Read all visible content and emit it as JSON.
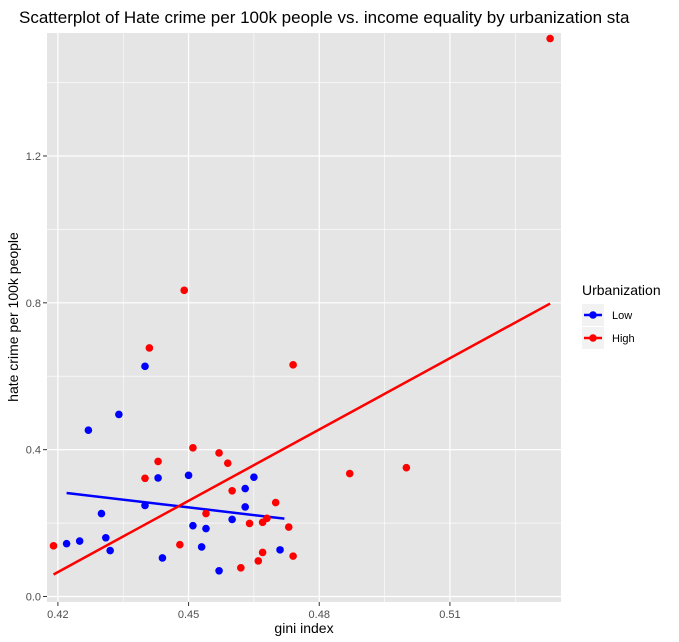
{
  "chart_data": {
    "type": "scatter",
    "title": "Scatterplot of Hate crime per 100k people vs. income equality by urbanization sta",
    "xlabel": "gini index",
    "ylabel": "hate crime per 100k people",
    "xlim": [
      0.4175,
      0.5355
    ],
    "ylim": [
      -0.015,
      1.535
    ],
    "x_ticks": [
      0.42,
      0.45,
      0.48,
      0.51
    ],
    "x_tick_labels": [
      "0.42",
      "0.45",
      "0.48",
      "0.51"
    ],
    "y_ticks": [
      0.0,
      0.4,
      0.8,
      1.2
    ],
    "y_tick_labels": [
      "0.0",
      "0.4",
      "0.8",
      "1.2"
    ],
    "grid": true,
    "legend": {
      "title": "Urbanization",
      "position": "right"
    },
    "colors": {
      "Low": "#0000ff",
      "High": "#ff0000",
      "panel": "#e5e5e5",
      "grid": "#ffffff"
    },
    "series": [
      {
        "name": "Low",
        "color": "#0000ff",
        "points": [
          [
            0.422,
            0.144
          ],
          [
            0.425,
            0.151
          ],
          [
            0.427,
            0.453
          ],
          [
            0.43,
            0.226
          ],
          [
            0.431,
            0.16
          ],
          [
            0.432,
            0.125
          ],
          [
            0.434,
            0.496
          ],
          [
            0.44,
            0.627
          ],
          [
            0.44,
            0.248
          ],
          [
            0.443,
            0.323
          ],
          [
            0.444,
            0.105
          ],
          [
            0.45,
            0.33
          ],
          [
            0.451,
            0.193
          ],
          [
            0.453,
            0.135
          ],
          [
            0.454,
            0.185
          ],
          [
            0.457,
            0.07
          ],
          [
            0.46,
            0.21
          ],
          [
            0.463,
            0.244
          ],
          [
            0.463,
            0.294
          ],
          [
            0.465,
            0.325
          ],
          [
            0.471,
            0.127
          ]
        ],
        "trend": [
          [
            0.422,
            0.282
          ],
          [
            0.472,
            0.212
          ]
        ]
      },
      {
        "name": "High",
        "color": "#ff0000",
        "points": [
          [
            0.419,
            0.138
          ],
          [
            0.44,
            0.322
          ],
          [
            0.441,
            0.677
          ],
          [
            0.443,
            0.368
          ],
          [
            0.448,
            0.141
          ],
          [
            0.449,
            0.834
          ],
          [
            0.451,
            0.405
          ],
          [
            0.454,
            0.226
          ],
          [
            0.457,
            0.391
          ],
          [
            0.459,
            0.363
          ],
          [
            0.46,
            0.288
          ],
          [
            0.462,
            0.078
          ],
          [
            0.464,
            0.199
          ],
          [
            0.466,
            0.097
          ],
          [
            0.467,
            0.12
          ],
          [
            0.467,
            0.202
          ],
          [
            0.468,
            0.213
          ],
          [
            0.47,
            0.256
          ],
          [
            0.473,
            0.189
          ],
          [
            0.474,
            0.631
          ],
          [
            0.474,
            0.11
          ],
          [
            0.487,
            0.335
          ],
          [
            0.5,
            0.351
          ],
          [
            0.533,
            1.52
          ]
        ],
        "trend": [
          [
            0.419,
            0.06
          ],
          [
            0.533,
            0.798
          ]
        ]
      }
    ]
  }
}
